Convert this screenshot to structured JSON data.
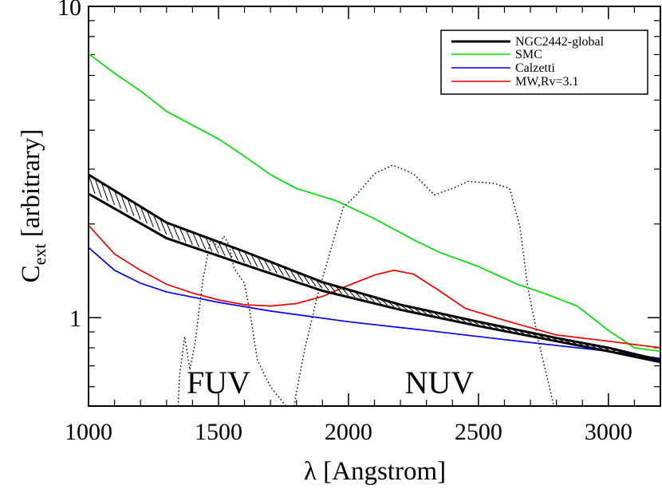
{
  "chart_data": {
    "type": "line",
    "xlabel": "λ [Angstrom]",
    "ylabel_main": "C",
    "ylabel_sub": "ext",
    "ylabel_tail": " [arbitrary]",
    "xlim": [
      1000,
      3200
    ],
    "ylim": [
      0.52,
      10
    ],
    "yscale": "log",
    "xticks": [
      1000,
      1500,
      2000,
      2500,
      3000
    ],
    "xtick_labels": [
      "1000",
      "1500",
      "2000",
      "2500",
      "3000"
    ],
    "yticks": [
      1,
      10
    ],
    "ytick_labels": [
      "1",
      "10"
    ],
    "grid": false,
    "legend_position": "top-right",
    "series": [
      {
        "name": "NGC2442-global",
        "color": "#000000",
        "style": "band",
        "upper": [
          [
            1000,
            2.88
          ],
          [
            1300,
            2.02
          ],
          [
            1600,
            1.63
          ],
          [
            1900,
            1.3
          ],
          [
            2200,
            1.1
          ],
          [
            2500,
            0.97
          ],
          [
            2800,
            0.86
          ],
          [
            3000,
            0.8
          ],
          [
            3200,
            0.73
          ]
        ],
        "lower": [
          [
            1000,
            2.5
          ],
          [
            1300,
            1.8
          ],
          [
            1600,
            1.48
          ],
          [
            1900,
            1.22
          ],
          [
            2200,
            1.06
          ],
          [
            2500,
            0.94
          ],
          [
            2800,
            0.84
          ],
          [
            3000,
            0.78
          ],
          [
            3200,
            0.72
          ]
        ]
      },
      {
        "name": "SMC",
        "color": "#00dd00",
        "values": [
          [
            1000,
            7.05
          ],
          [
            1100,
            6.1
          ],
          [
            1200,
            5.35
          ],
          [
            1300,
            4.6
          ],
          [
            1400,
            4.15
          ],
          [
            1500,
            3.75
          ],
          [
            1600,
            3.3
          ],
          [
            1700,
            2.88
          ],
          [
            1800,
            2.6
          ],
          [
            1950,
            2.38
          ],
          [
            2100,
            2.08
          ],
          [
            2250,
            1.78
          ],
          [
            2350,
            1.62
          ],
          [
            2500,
            1.46
          ],
          [
            2650,
            1.28
          ],
          [
            2750,
            1.2
          ],
          [
            2880,
            1.09
          ],
          [
            3000,
            0.91
          ],
          [
            3100,
            0.8
          ],
          [
            3200,
            0.78
          ]
        ]
      },
      {
        "name": "Calzetti",
        "color": "#0000ee",
        "values": [
          [
            1000,
            1.68
          ],
          [
            1100,
            1.42
          ],
          [
            1200,
            1.29
          ],
          [
            1300,
            1.21
          ],
          [
            1500,
            1.12
          ],
          [
            1700,
            1.05
          ],
          [
            2000,
            0.97
          ],
          [
            2300,
            0.91
          ],
          [
            2600,
            0.85
          ],
          [
            3000,
            0.78
          ],
          [
            3200,
            0.74
          ]
        ]
      },
      {
        "name": "MW,Rv=3.1",
        "color": "#ee0000",
        "values": [
          [
            1000,
            1.98
          ],
          [
            1100,
            1.6
          ],
          [
            1200,
            1.42
          ],
          [
            1300,
            1.28
          ],
          [
            1400,
            1.2
          ],
          [
            1500,
            1.14
          ],
          [
            1600,
            1.1
          ],
          [
            1700,
            1.09
          ],
          [
            1800,
            1.11
          ],
          [
            1900,
            1.17
          ],
          [
            2000,
            1.27
          ],
          [
            2100,
            1.37
          ],
          [
            2175,
            1.42
          ],
          [
            2250,
            1.38
          ],
          [
            2350,
            1.22
          ],
          [
            2450,
            1.07
          ],
          [
            2600,
            0.98
          ],
          [
            2800,
            0.88
          ],
          [
            3000,
            0.84
          ],
          [
            3200,
            0.8
          ]
        ]
      },
      {
        "name": "FUV filter",
        "color": "#000000",
        "style": "dotted",
        "values": [
          [
            1345,
            0.52
          ],
          [
            1350,
            0.65
          ],
          [
            1370,
            0.87
          ],
          [
            1390,
            0.68
          ],
          [
            1410,
            0.83
          ],
          [
            1440,
            1.32
          ],
          [
            1470,
            1.8
          ],
          [
            1500,
            1.68
          ],
          [
            1520,
            1.83
          ],
          [
            1540,
            1.72
          ],
          [
            1560,
            1.44
          ],
          [
            1600,
            1.29
          ],
          [
            1620,
            1.05
          ],
          [
            1650,
            0.73
          ],
          [
            1700,
            0.6
          ],
          [
            1760,
            0.52
          ]
        ]
      },
      {
        "name": "NUV filter",
        "color": "#000000",
        "style": "dotted",
        "values": [
          [
            1790,
            0.52
          ],
          [
            1830,
            0.78
          ],
          [
            1880,
            1.17
          ],
          [
            1940,
            1.75
          ],
          [
            1980,
            2.26
          ],
          [
            2030,
            2.48
          ],
          [
            2100,
            2.9
          ],
          [
            2170,
            3.09
          ],
          [
            2250,
            2.9
          ],
          [
            2330,
            2.48
          ],
          [
            2400,
            2.6
          ],
          [
            2460,
            2.74
          ],
          [
            2560,
            2.7
          ],
          [
            2620,
            2.6
          ],
          [
            2660,
            1.95
          ],
          [
            2690,
            1.25
          ],
          [
            2730,
            0.85
          ],
          [
            2790,
            0.52
          ]
        ]
      }
    ],
    "annotations": [
      {
        "text": "FUV",
        "x": 1500,
        "y": 0.62
      },
      {
        "text": "NUV",
        "x": 2350,
        "y": 0.62
      }
    ]
  }
}
